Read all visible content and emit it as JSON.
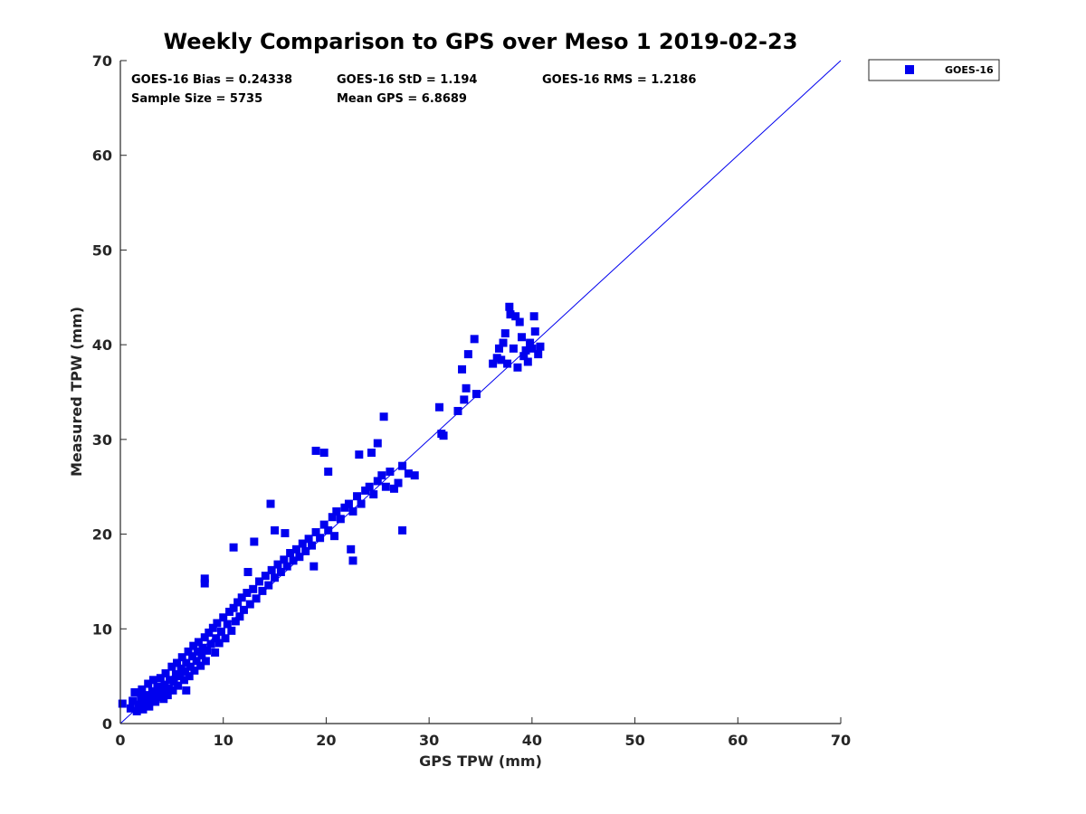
{
  "chart_data": {
    "type": "scatter",
    "title": "Weekly Comparison to GPS over Meso 1 2019-02-23",
    "xlabel": "GPS TPW (mm)",
    "ylabel": "Measured TPW (mm)",
    "xlim": [
      0,
      70
    ],
    "ylim": [
      0,
      70
    ],
    "xticks": [
      "0",
      "10",
      "20",
      "30",
      "40",
      "50",
      "60",
      "70"
    ],
    "yticks": [
      "0",
      "10",
      "20",
      "30",
      "40",
      "50",
      "60",
      "70"
    ],
    "grid": false,
    "legend_position": "outside-top-right",
    "legend": [
      "GOES-16"
    ],
    "marker_color": "#0000ee",
    "reference_line": {
      "name": "1:1 line",
      "from": [
        0,
        0
      ],
      "to": [
        70,
        70
      ],
      "color": "#0000ee"
    },
    "stats": [
      "GOES-16 Bias = 0.24338",
      "GOES-16 StD = 1.194",
      "GOES-16 RMS = 1.2186",
      "Sample Size = 5735",
      "Mean GPS = 6.8689"
    ],
    "series": [
      {
        "name": "GOES-16",
        "points": [
          [
            0.2,
            2.1
          ],
          [
            1.0,
            1.6
          ],
          [
            1.2,
            2.4
          ],
          [
            1.4,
            3.3
          ],
          [
            1.6,
            1.3
          ],
          [
            1.8,
            2.0
          ],
          [
            2.0,
            2.8
          ],
          [
            2.1,
            3.6
          ],
          [
            2.2,
            1.5
          ],
          [
            2.4,
            2.2
          ],
          [
            2.6,
            3.0
          ],
          [
            2.7,
            4.2
          ],
          [
            2.8,
            1.8
          ],
          [
            3.0,
            2.6
          ],
          [
            3.1,
            3.4
          ],
          [
            3.2,
            4.6
          ],
          [
            3.4,
            2.3
          ],
          [
            3.5,
            3.1
          ],
          [
            3.6,
            3.9
          ],
          [
            3.8,
            2.8
          ],
          [
            3.9,
            4.8
          ],
          [
            4.0,
            3.3
          ],
          [
            4.2,
            2.6
          ],
          [
            4.3,
            4.1
          ],
          [
            4.4,
            5.3
          ],
          [
            4.6,
            3.0
          ],
          [
            4.7,
            3.7
          ],
          [
            4.8,
            4.6
          ],
          [
            5.0,
            6.0
          ],
          [
            5.1,
            3.5
          ],
          [
            5.2,
            4.4
          ],
          [
            5.4,
            5.2
          ],
          [
            5.5,
            6.4
          ],
          [
            5.6,
            4.0
          ],
          [
            5.8,
            5.0
          ],
          [
            5.9,
            5.8
          ],
          [
            6.0,
            7.0
          ],
          [
            6.2,
            4.6
          ],
          [
            6.3,
            5.5
          ],
          [
            6.4,
            6.4
          ],
          [
            6.6,
            7.6
          ],
          [
            6.7,
            5.0
          ],
          [
            6.8,
            6.0
          ],
          [
            7.0,
            7.1
          ],
          [
            7.1,
            8.2
          ],
          [
            7.2,
            5.6
          ],
          [
            7.4,
            6.6
          ],
          [
            7.5,
            7.6
          ],
          [
            7.6,
            8.6
          ],
          [
            7.8,
            6.1
          ],
          [
            7.9,
            7.2
          ],
          [
            8.0,
            8.0
          ],
          [
            8.2,
            9.1
          ],
          [
            8.3,
            6.6
          ],
          [
            8.4,
            7.7
          ],
          [
            8.6,
            9.6
          ],
          [
            8.8,
            8.4
          ],
          [
            9.0,
            10.1
          ],
          [
            9.2,
            7.5
          ],
          [
            9.3,
            9.0
          ],
          [
            9.4,
            10.6
          ],
          [
            9.6,
            8.5
          ],
          [
            9.8,
            9.7
          ],
          [
            10.0,
            11.2
          ],
          [
            10.2,
            9.0
          ],
          [
            10.4,
            10.5
          ],
          [
            10.6,
            11.8
          ],
          [
            10.8,
            9.8
          ],
          [
            11.0,
            12.2
          ],
          [
            11.2,
            10.8
          ],
          [
            11.4,
            12.8
          ],
          [
            11.6,
            11.3
          ],
          [
            11.8,
            13.3
          ],
          [
            12.0,
            12.0
          ],
          [
            12.3,
            13.8
          ],
          [
            12.6,
            12.6
          ],
          [
            12.9,
            14.2
          ],
          [
            13.2,
            13.2
          ],
          [
            13.5,
            15.0
          ],
          [
            13.8,
            14.0
          ],
          [
            14.1,
            15.6
          ],
          [
            14.4,
            14.6
          ],
          [
            14.7,
            16.2
          ],
          [
            15.0,
            15.4
          ],
          [
            15.3,
            16.8
          ],
          [
            15.6,
            16.0
          ],
          [
            15.9,
            17.3
          ],
          [
            16.2,
            16.6
          ],
          [
            16.5,
            18.0
          ],
          [
            16.8,
            17.2
          ],
          [
            17.1,
            18.4
          ],
          [
            17.4,
            17.6
          ],
          [
            17.7,
            19.0
          ],
          [
            18.0,
            18.2
          ],
          [
            18.3,
            19.5
          ],
          [
            18.6,
            18.8
          ],
          [
            19.0,
            20.2
          ],
          [
            19.4,
            19.6
          ],
          [
            19.8,
            21.0
          ],
          [
            20.2,
            20.4
          ],
          [
            20.6,
            21.8
          ],
          [
            21.0,
            22.4
          ],
          [
            21.4,
            21.6
          ],
          [
            21.8,
            22.8
          ],
          [
            22.2,
            23.2
          ],
          [
            22.6,
            22.4
          ],
          [
            23.0,
            24.0
          ],
          [
            23.4,
            23.2
          ],
          [
            23.8,
            24.6
          ],
          [
            24.2,
            25.0
          ],
          [
            24.6,
            24.2
          ],
          [
            25.0,
            25.6
          ],
          [
            25.4,
            26.2
          ],
          [
            25.8,
            25.0
          ],
          [
            26.2,
            26.6
          ],
          [
            26.6,
            24.8
          ],
          [
            27.0,
            25.4
          ],
          [
            27.4,
            27.2
          ],
          [
            6.4,
            3.5
          ],
          [
            8.2,
            15.3
          ],
          [
            8.2,
            14.8
          ],
          [
            11.0,
            18.6
          ],
          [
            12.4,
            16.0
          ],
          [
            13.0,
            19.2
          ],
          [
            14.6,
            23.2
          ],
          [
            15.0,
            20.4
          ],
          [
            16.0,
            20.1
          ],
          [
            18.8,
            16.6
          ],
          [
            19.0,
            28.8
          ],
          [
            19.8,
            28.6
          ],
          [
            20.2,
            26.6
          ],
          [
            20.8,
            19.8
          ],
          [
            22.4,
            18.4
          ],
          [
            22.6,
            17.2
          ],
          [
            23.2,
            28.4
          ],
          [
            24.4,
            28.6
          ],
          [
            25.0,
            29.6
          ],
          [
            25.6,
            32.4
          ],
          [
            27.4,
            20.4
          ],
          [
            28.0,
            26.4
          ],
          [
            28.6,
            26.2
          ],
          [
            31.0,
            33.4
          ],
          [
            31.2,
            30.6
          ],
          [
            31.4,
            30.4
          ],
          [
            32.8,
            33.0
          ],
          [
            33.2,
            37.4
          ],
          [
            33.4,
            34.2
          ],
          [
            33.6,
            35.4
          ],
          [
            33.8,
            39.0
          ],
          [
            34.4,
            40.6
          ],
          [
            34.6,
            34.8
          ],
          [
            36.2,
            38.0
          ],
          [
            36.6,
            38.6
          ],
          [
            36.8,
            39.6
          ],
          [
            37.0,
            38.4
          ],
          [
            37.2,
            40.2
          ],
          [
            37.4,
            41.2
          ],
          [
            37.6,
            38.0
          ],
          [
            37.8,
            44.0
          ],
          [
            37.9,
            43.2
          ],
          [
            38.2,
            39.6
          ],
          [
            38.4,
            43.0
          ],
          [
            38.6,
            37.6
          ],
          [
            38.8,
            42.4
          ],
          [
            39.0,
            40.8
          ],
          [
            39.2,
            38.8
          ],
          [
            39.4,
            39.4
          ],
          [
            39.6,
            38.2
          ],
          [
            39.8,
            40.2
          ],
          [
            40.0,
            39.6
          ],
          [
            40.2,
            43.0
          ],
          [
            40.3,
            41.4
          ],
          [
            40.6,
            39.0
          ],
          [
            40.8,
            39.8
          ]
        ]
      }
    ]
  }
}
